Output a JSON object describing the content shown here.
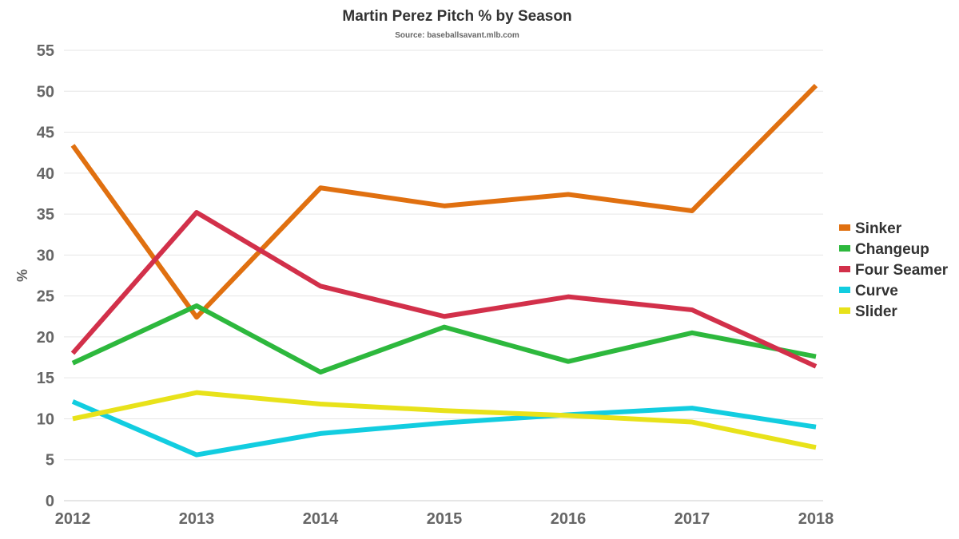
{
  "chart_data": {
    "type": "line",
    "title": "Martin Perez Pitch % by Season",
    "subtitle": "Source: baseballsavant.mlb.com",
    "xlabel": "",
    "ylabel": "%",
    "x": [
      "2012",
      "2013",
      "2014",
      "2015",
      "2016",
      "2017",
      "2018"
    ],
    "ylim": [
      0,
      55
    ],
    "yticks": [
      0,
      5,
      10,
      15,
      20,
      25,
      30,
      35,
      40,
      45,
      50,
      55
    ],
    "grid": true,
    "legend_position": "right",
    "series": [
      {
        "name": "Sinker",
        "color": "#e07010",
        "values": [
          43.4,
          22.4,
          38.2,
          36.0,
          37.4,
          35.4,
          50.7
        ]
      },
      {
        "name": "Changeup",
        "color": "#2db83d",
        "values": [
          16.8,
          23.8,
          15.7,
          21.2,
          17.0,
          20.5,
          17.6
        ]
      },
      {
        "name": "Four Seamer",
        "color": "#d2304a",
        "values": [
          18.0,
          35.2,
          26.2,
          22.5,
          24.9,
          23.3,
          16.4
        ]
      },
      {
        "name": "Curve",
        "color": "#12cde0",
        "values": [
          12.1,
          5.6,
          8.2,
          9.5,
          10.5,
          11.3,
          9.0
        ]
      },
      {
        "name": "Slider",
        "color": "#e8e21a",
        "values": [
          10.0,
          13.2,
          11.8,
          11.0,
          10.4,
          9.6,
          6.5
        ]
      }
    ]
  }
}
